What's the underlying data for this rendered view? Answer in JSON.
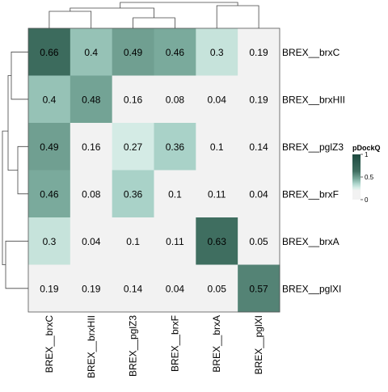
{
  "chart_data": {
    "type": "heatmap",
    "rows": [
      "BREX__brxC",
      "BREX__brxHII",
      "BREX__pglZ3",
      "BREX__brxF",
      "BREX__brxA",
      "BREX__pglXI"
    ],
    "columns": [
      "BREX__brxC",
      "BREX__brxHII",
      "BREX__pglZ3",
      "BREX__brxF",
      "BREX__brxA",
      "BREX__pglXI"
    ],
    "values": [
      [
        0.66,
        0.4,
        0.49,
        0.46,
        0.3,
        0.19
      ],
      [
        0.4,
        0.48,
        0.16,
        0.08,
        0.04,
        0.19
      ],
      [
        0.49,
        0.16,
        0.27,
        0.36,
        0.1,
        0.14
      ],
      [
        0.46,
        0.08,
        0.36,
        0.1,
        0.11,
        0.04
      ],
      [
        0.3,
        0.04,
        0.1,
        0.11,
        0.63,
        0.05
      ],
      [
        0.19,
        0.19,
        0.14,
        0.04,
        0.05,
        0.57
      ]
    ],
    "value_labels": [
      [
        "0.66",
        "0.4",
        "0.49",
        "0.46",
        "0.3",
        "0.19"
      ],
      [
        "0.4",
        "0.48",
        "0.16",
        "0.08",
        "0.04",
        "0.19"
      ],
      [
        "0.49",
        "0.16",
        "0.27",
        "0.36",
        "0.1",
        "0.14"
      ],
      [
        "0.46",
        "0.08",
        "0.36",
        "0.1",
        "0.11",
        "0.04"
      ],
      [
        "0.3",
        "0.04",
        "0.1",
        "0.11",
        "0.63",
        "0.05"
      ],
      [
        "0.19",
        "0.19",
        "0.14",
        "0.04",
        "0.05",
        "0.57"
      ]
    ],
    "legend": {
      "title": "pDockQ",
      "ticks": [
        "1",
        "0.5",
        "0"
      ],
      "tick_values": [
        1,
        0.5,
        0
      ],
      "range": [
        0,
        1
      ],
      "colors": [
        "#f2f2f2",
        "#f2f2f2",
        "#d4ebe5",
        "#a9d2c8",
        "#7aaa9c",
        "#3f6e60",
        "#1e4a40"
      ],
      "color_stops": [
        0,
        0.2,
        0.27,
        0.36,
        0.46,
        0.63,
        1.0
      ]
    },
    "row_dendrogram": true,
    "column_dendrogram": true,
    "grid": false
  }
}
